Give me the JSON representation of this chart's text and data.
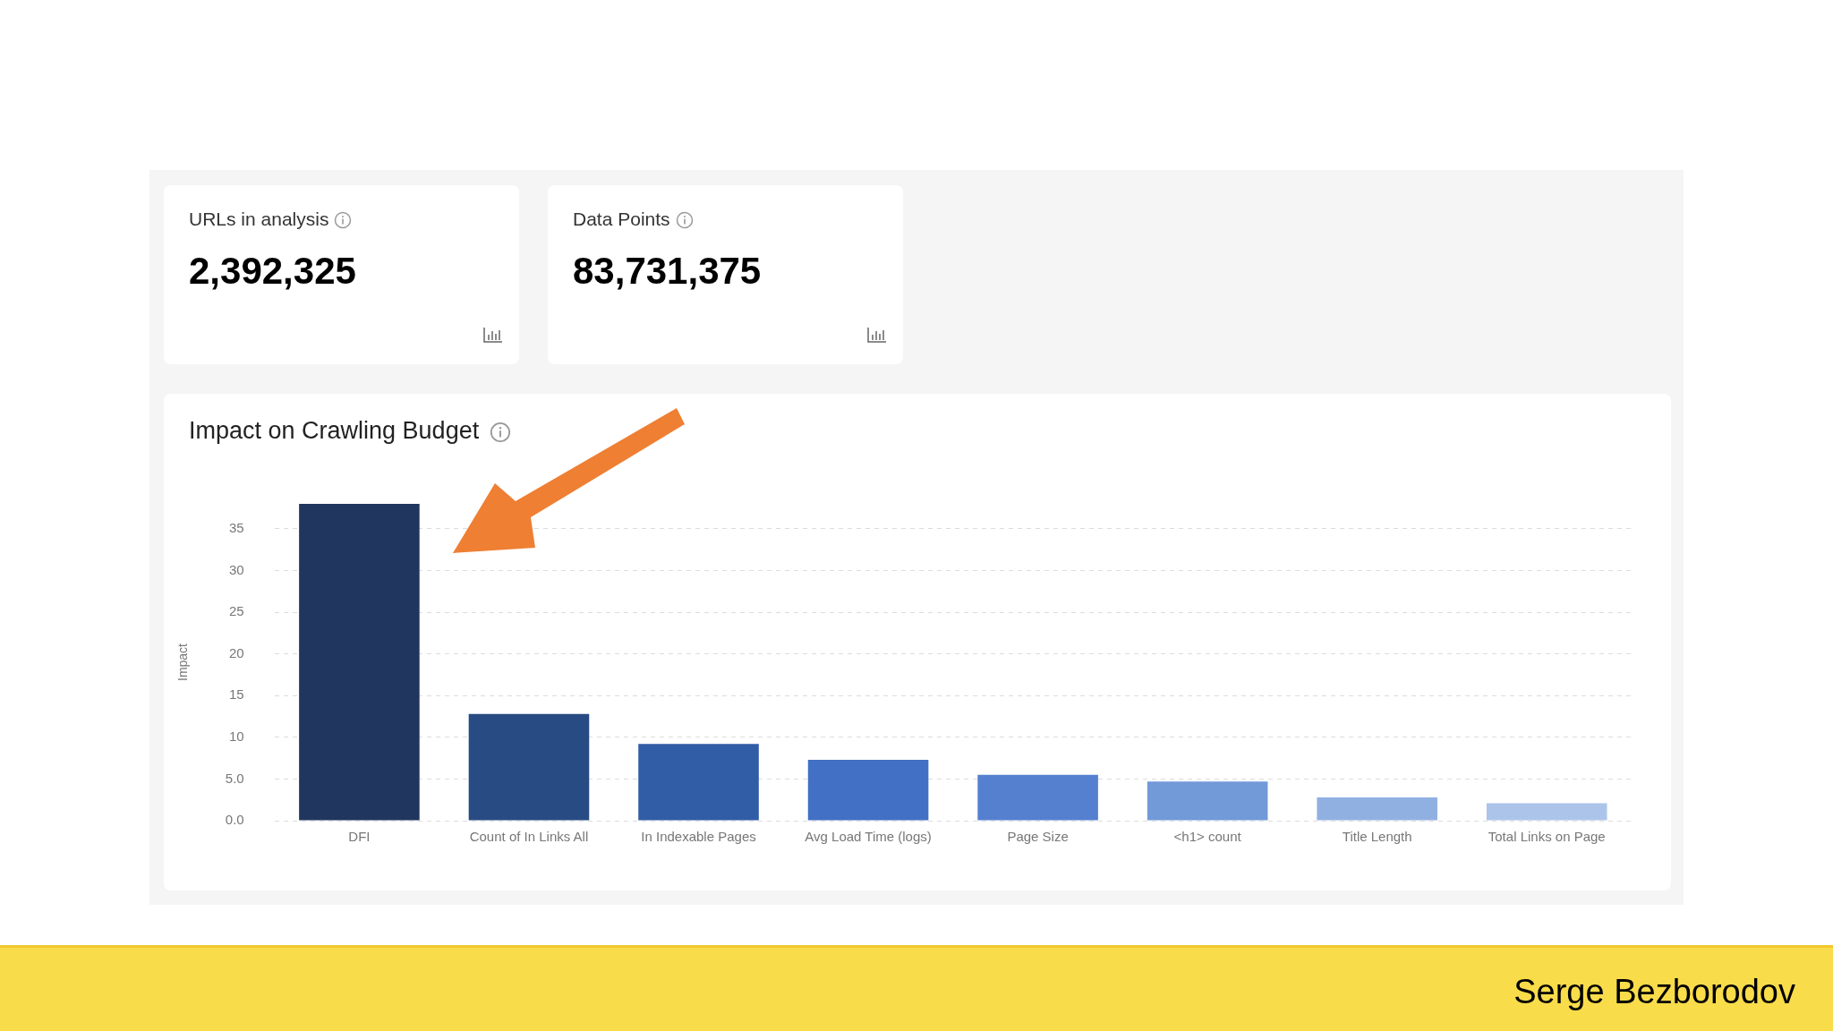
{
  "chart_data": {
    "type": "bar",
    "title": "Impact on Crawling Budget",
    "ylabel": "Impact",
    "categories": [
      "DFI",
      "Count of In Links All",
      "In Indexable Pages",
      "Avg Load Time (logs)",
      "Page Size",
      "<h1> count",
      "Title Length",
      "Total Links on Page"
    ],
    "values": [
      38,
      12.8,
      9.2,
      7.3,
      5.5,
      4.7,
      2.8,
      2.1
    ],
    "colors": [
      "#21365e",
      "#284b83",
      "#315ca6",
      "#4170c4",
      "#5580d0",
      "#7299d8",
      "#91b0e2",
      "#adc4ea"
    ],
    "ylim": [
      0,
      38
    ],
    "yticks": [
      {
        "value": 0,
        "label": "0.0"
      },
      {
        "value": 5,
        "label": "5.0"
      },
      10,
      15,
      20,
      25,
      30,
      35
    ],
    "grid": "y",
    "legend": false,
    "annotations": [
      "URLs in analysis",
      "2,392,325",
      "Data Points",
      "83,731,375",
      "Serge Bezborodov"
    ]
  }
}
